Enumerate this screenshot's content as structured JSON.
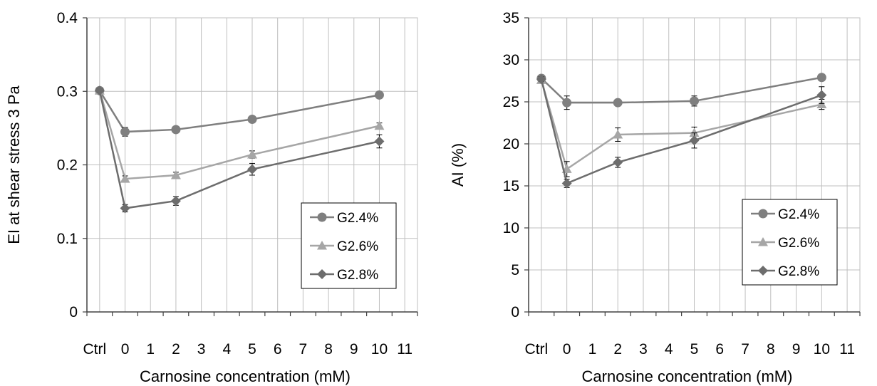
{
  "chart_data": [
    {
      "type": "line",
      "title": "",
      "xlabel": "Carnosine concentration (mM)",
      "ylabel": "EI at shear stress 3 Pa",
      "x_ticks": [
        "Ctrl",
        "0",
        "1",
        "2",
        "3",
        "4",
        "5",
        "6",
        "7",
        "8",
        "9",
        "10",
        "11"
      ],
      "ylim": [
        0,
        0.4
      ],
      "y_ticks": [
        "0",
        "0.1",
        "0.2",
        "0.3",
        "0.4"
      ],
      "grid": true,
      "legend_position": "bottom-right",
      "series": [
        {
          "name": "G2.4%",
          "marker": "circle",
          "color": "#7f7f7f",
          "x": [
            "Ctrl",
            "0",
            "2",
            "5",
            "10"
          ],
          "values": [
            0.301,
            0.245,
            0.248,
            0.262,
            0.295
          ],
          "errors": [
            0.003,
            0.006,
            0.003,
            0.004,
            0.004
          ]
        },
        {
          "name": "G2.6%",
          "marker": "triangle",
          "color": "#a6a6a6",
          "x": [
            "Ctrl",
            "0",
            "2",
            "5",
            "10"
          ],
          "values": [
            0.301,
            0.181,
            0.186,
            0.214,
            0.253
          ],
          "errors": [
            0.003,
            0.004,
            0.004,
            0.005,
            0.004
          ]
        },
        {
          "name": "G2.8%",
          "marker": "diamond",
          "color": "#6d6d6d",
          "x": [
            "Ctrl",
            "0",
            "2",
            "5",
            "10"
          ],
          "values": [
            0.301,
            0.141,
            0.151,
            0.194,
            0.232
          ],
          "errors": [
            0.003,
            0.005,
            0.006,
            0.008,
            0.009
          ]
        }
      ]
    },
    {
      "type": "line",
      "title": "",
      "xlabel": "Carnosine concentration (mM)",
      "ylabel": "AI (%)",
      "x_ticks": [
        "Ctrl",
        "0",
        "1",
        "2",
        "3",
        "4",
        "5",
        "6",
        "7",
        "8",
        "9",
        "10",
        "11"
      ],
      "ylim": [
        0,
        35
      ],
      "y_ticks": [
        "0",
        "5",
        "10",
        "15",
        "20",
        "25",
        "30",
        "35"
      ],
      "grid": true,
      "legend_position": "bottom-right",
      "series": [
        {
          "name": "G2.4%",
          "marker": "circle",
          "color": "#7f7f7f",
          "x": [
            "Ctrl",
            "0",
            "2",
            "5",
            "10"
          ],
          "values": [
            27.8,
            24.9,
            24.9,
            25.1,
            27.9
          ],
          "errors": [
            0.3,
            0.8,
            0.3,
            0.6,
            0.4
          ]
        },
        {
          "name": "G2.6%",
          "marker": "triangle",
          "color": "#a6a6a6",
          "x": [
            "Ctrl",
            "0",
            "2",
            "5",
            "10"
          ],
          "values": [
            27.6,
            17.0,
            21.1,
            21.3,
            24.7
          ],
          "errors": [
            0.3,
            0.9,
            0.8,
            0.7,
            0.6
          ]
        },
        {
          "name": "G2.8%",
          "marker": "diamond",
          "color": "#6d6d6d",
          "x": [
            "Ctrl",
            "0",
            "2",
            "5",
            "10"
          ],
          "values": [
            27.7,
            15.3,
            17.8,
            20.4,
            25.8
          ],
          "errors": [
            0.3,
            0.5,
            0.6,
            0.9,
            1.0
          ]
        }
      ]
    }
  ]
}
